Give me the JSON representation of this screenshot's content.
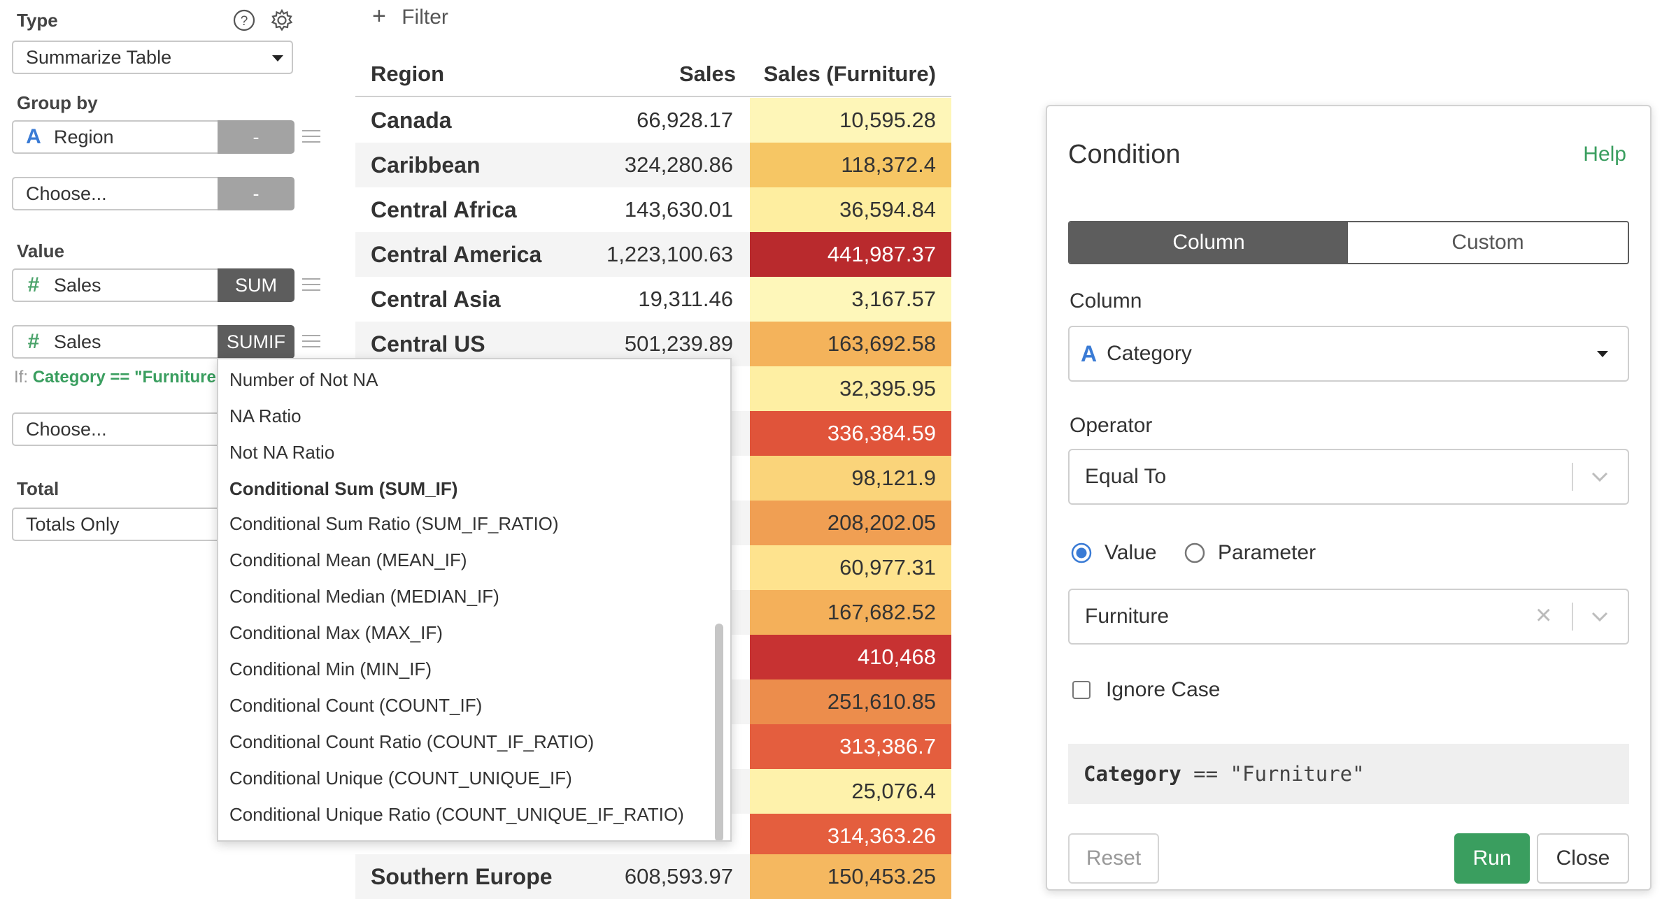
{
  "left_panel": {
    "type_label": "Type",
    "type_value": "Summarize Table",
    "group_by_label": "Group by",
    "group_by_items": [
      {
        "type_icon": "A",
        "name": "Region",
        "agg": "-"
      }
    ],
    "group_choose": {
      "placeholder": "Choose...",
      "agg": "-"
    },
    "value_label": "Value",
    "value_items": [
      {
        "type_icon": "#",
        "name": "Sales",
        "agg": "SUM"
      },
      {
        "type_icon": "#",
        "name": "Sales",
        "agg": "SUMIF"
      }
    ],
    "condition_prefix": "If:",
    "condition_text": "Category == \"Furniture\"",
    "value_choose": "Choose...",
    "total_label": "Total",
    "total_value": "Totals Only"
  },
  "filter": {
    "icon": "+",
    "label": "Filter"
  },
  "table": {
    "headers": [
      "Region",
      "Sales",
      "Sales (Furniture)"
    ],
    "rows": [
      {
        "region": "Canada",
        "sales": "66,928.17",
        "furniture": "10,595.28",
        "bg": "#fef6b8",
        "fg": "#333333"
      },
      {
        "region": "Caribbean",
        "sales": "324,280.86",
        "furniture": "118,372.4",
        "bg": "#f6c664",
        "fg": "#333333"
      },
      {
        "region": "Central Africa",
        "sales": "143,630.01",
        "furniture": "36,594.84",
        "bg": "#feeea0",
        "fg": "#333333"
      },
      {
        "region": "Central America",
        "sales": "1,223,100.63",
        "furniture": "441,987.37",
        "bg": "#b92a2d",
        "fg": "#ffffff"
      },
      {
        "region": "Central Asia",
        "sales": "19,311.46",
        "furniture": "3,167.57",
        "bg": "#fef7ba",
        "fg": "#333333"
      },
      {
        "region": "Central US",
        "sales": "501,239.89",
        "furniture": "163,692.58",
        "bg": "#f4b35b",
        "fg": "#333333"
      },
      {
        "region": "",
        "sales": "",
        "furniture": "32,395.95",
        "bg": "#feefa3",
        "fg": "#333333"
      },
      {
        "region": "",
        "sales": "",
        "furniture": "336,384.59",
        "bg": "#e0543a",
        "fg": "#ffffff"
      },
      {
        "region": "",
        "sales": "",
        "furniture": "98,121.9",
        "bg": "#fad47a",
        "fg": "#333333"
      },
      {
        "region": "",
        "sales": "",
        "furniture": "208,202.05",
        "bg": "#f09f53",
        "fg": "#333333"
      },
      {
        "region": "",
        "sales": "",
        "furniture": "60,977.31",
        "bg": "#fee38e",
        "fg": "#333333"
      },
      {
        "region": "",
        "sales": "",
        "furniture": "167,682.52",
        "bg": "#f4b05a",
        "fg": "#333333"
      },
      {
        "region": "",
        "sales": "",
        "furniture": "410,468",
        "bg": "#c73232",
        "fg": "#ffffff"
      },
      {
        "region": "",
        "sales": "",
        "furniture": "251,610.85",
        "bg": "#ec8d4c",
        "fg": "#333333"
      },
      {
        "region": "",
        "sales": "",
        "furniture": "313,386.7",
        "bg": "#e45e3e",
        "fg": "#ffffff"
      },
      {
        "region": "",
        "sales": "",
        "furniture": "25,076.4",
        "bg": "#fef2ab",
        "fg": "#333333"
      },
      {
        "region": "",
        "sales": "",
        "furniture": "314,363.26",
        "bg": "#e45e3e",
        "fg": "#ffffff"
      },
      {
        "region": "Southern Europe",
        "sales": "608,593.97",
        "furniture": "150,453.25",
        "bg": "#f5b860",
        "fg": "#333333"
      }
    ]
  },
  "dropdown": {
    "items": [
      "Number of Not NA",
      "NA Ratio",
      "Not NA Ratio",
      "Conditional Sum (SUM_IF)",
      "Conditional Sum Ratio (SUM_IF_RATIO)",
      "Conditional Mean (MEAN_IF)",
      "Conditional Median (MEDIAN_IF)",
      "Conditional Max (MAX_IF)",
      "Conditional Min (MIN_IF)",
      "Conditional Count (COUNT_IF)",
      "Conditional Count Ratio (COUNT_IF_RATIO)",
      "Conditional Unique (COUNT_UNIQUE_IF)",
      "Conditional Unique Ratio (COUNT_UNIQUE_IF_RATIO)"
    ],
    "selected_index": 3
  },
  "condition_dialog": {
    "title": "Condition",
    "help": "Help",
    "tabs": [
      "Column",
      "Custom"
    ],
    "active_tab": 0,
    "column_label": "Column",
    "column_type_icon": "A",
    "column_value": "Category",
    "operator_label": "Operator",
    "operator_value": "Equal To",
    "radio_value": "Value",
    "radio_parameter": "Parameter",
    "value_input": "Furniture",
    "clear_icon": "×",
    "ignore_case": "Ignore Case",
    "preview_column": "Category",
    "preview_rest": " == \"Furniture\"",
    "reset": "Reset",
    "run": "Run",
    "close": "Close",
    "accent_color": "#3a9e5f"
  }
}
